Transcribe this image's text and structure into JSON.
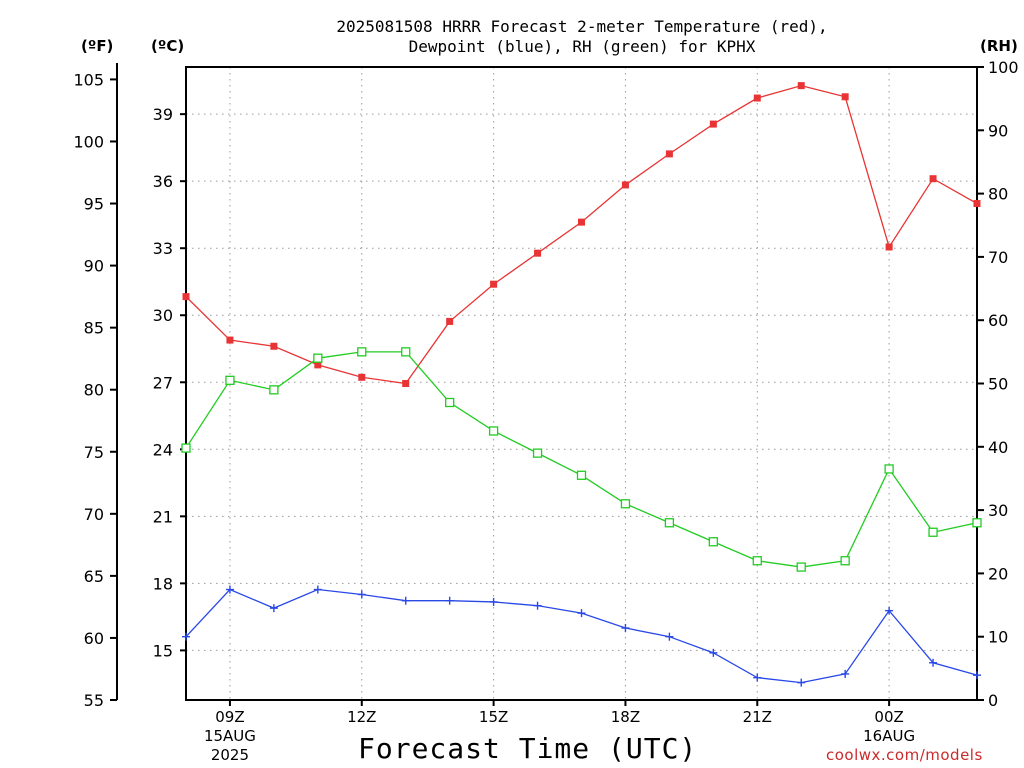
{
  "title_line1": "2025081508 HRRR Forecast 2-meter Temperature (red),",
  "title_line2": "Dewpoint (blue), RH (green) for KPHX",
  "units": {
    "f": "(ºF)",
    "c": "(ºC)",
    "rh": "(RH)"
  },
  "xlabel": "Forecast Time (UTC)",
  "credit": "coolwx.com/models",
  "colors": {
    "temperature": "#e83434",
    "dewpoint": "#2848e8",
    "rh": "#22cc22",
    "grid": "#9a9a9a"
  },
  "chart_data": {
    "type": "line",
    "x": [
      "08Z",
      "09Z",
      "10Z",
      "11Z",
      "12Z",
      "13Z",
      "14Z",
      "15Z",
      "16Z",
      "17Z",
      "18Z",
      "19Z",
      "20Z",
      "21Z",
      "22Z",
      "23Z",
      "00Z",
      "01Z",
      "02Z"
    ],
    "x_ticks": [
      {
        "index": 1,
        "label": "09Z",
        "sub1": "15AUG",
        "sub2": "2025"
      },
      {
        "index": 4,
        "label": "12Z"
      },
      {
        "index": 7,
        "label": "15Z"
      },
      {
        "index": 10,
        "label": "18Z"
      },
      {
        "index": 13,
        "label": "21Z"
      },
      {
        "index": 16,
        "label": "00Z",
        "sub1": "16AUG"
      }
    ],
    "ylim_f": [
      55,
      106
    ],
    "ylim_c": [
      12.78,
      41.11
    ],
    "ylim_rh": [
      0,
      100
    ],
    "yticks_f": [
      55,
      60,
      65,
      70,
      75,
      80,
      85,
      90,
      95,
      100,
      105
    ],
    "yticks_c": [
      15,
      18,
      21,
      24,
      27,
      30,
      33,
      36,
      39
    ],
    "yticks_rh": [
      0,
      10,
      20,
      30,
      40,
      50,
      60,
      70,
      80,
      90,
      100
    ],
    "grid": true,
    "series": [
      {
        "name": "Temperature",
        "axis": "f",
        "marker": "filled-square",
        "values": [
          87.5,
          84.0,
          83.5,
          82.0,
          81.0,
          80.5,
          85.5,
          88.5,
          91.0,
          93.5,
          96.5,
          99.0,
          101.4,
          103.5,
          104.5,
          103.6,
          91.5,
          97.0,
          95.0
        ]
      },
      {
        "name": "Dewpoint",
        "axis": "f",
        "marker": "plus",
        "values": [
          60.1,
          63.9,
          62.4,
          63.9,
          63.5,
          63.0,
          63.0,
          62.9,
          62.6,
          62.0,
          60.8,
          60.1,
          58.8,
          56.8,
          56.4,
          57.1,
          62.2,
          58.0,
          57.0
        ]
      },
      {
        "name": "RH",
        "axis": "rh",
        "marker": "open-square",
        "values": [
          39.8,
          50.5,
          49.0,
          54.0,
          55.0,
          55.0,
          47.0,
          42.5,
          39.0,
          35.5,
          31.0,
          28.0,
          25.0,
          22.0,
          21.0,
          22.0,
          36.5,
          26.5,
          28.0
        ]
      }
    ]
  }
}
